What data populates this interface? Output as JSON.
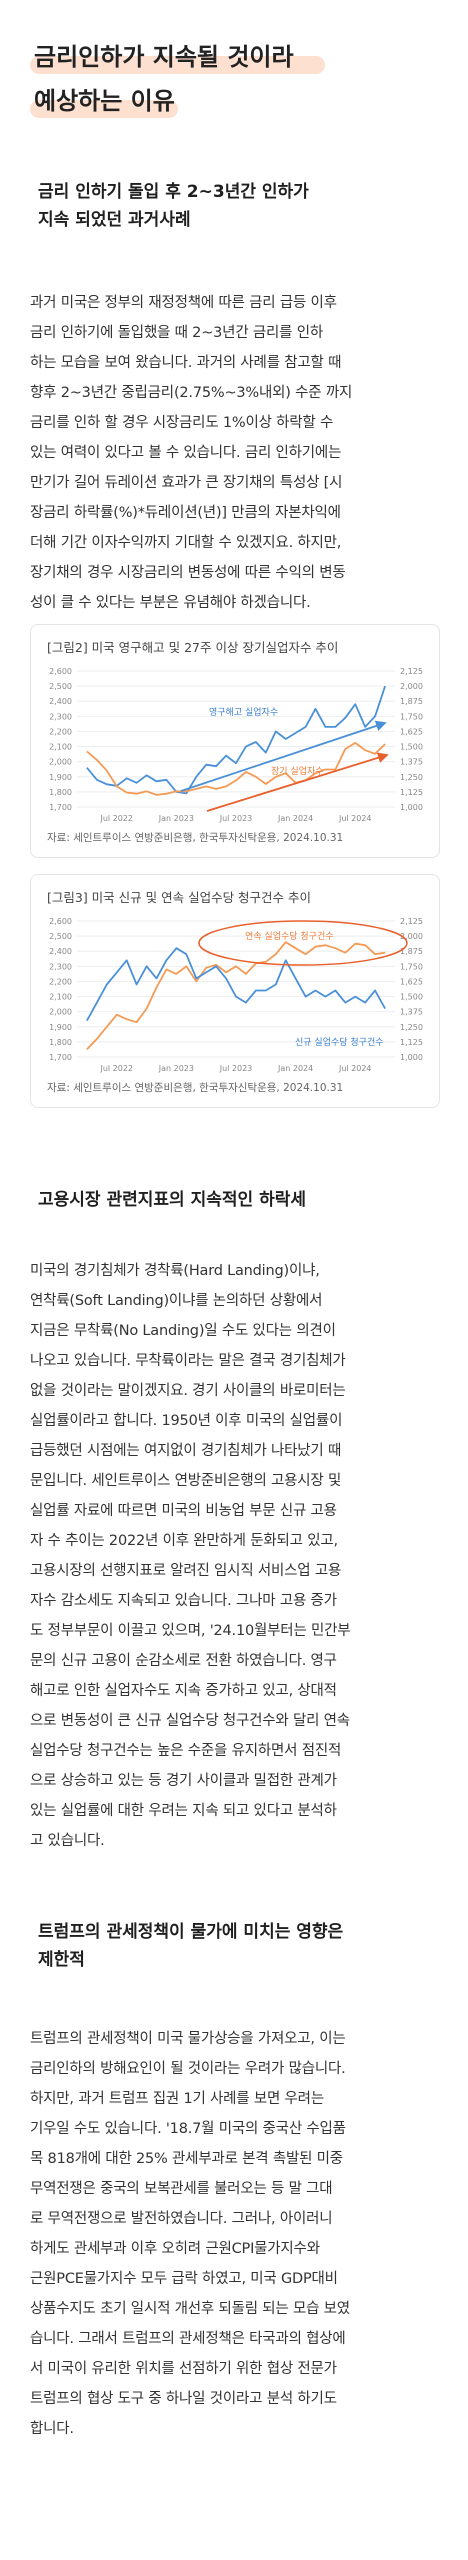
{
  "title": {
    "line1": "금리인하가 지속될 것이라",
    "line2": "예상하는 이유"
  },
  "section1": {
    "heading_line1": "금리 인하기 돌입 후 2~3년간 인하가",
    "heading_line2": "지속 되었던 과거사례",
    "lines": [
      "과거 미국은 정부의 재정정책에 따른 금리 급등 이후",
      "금리 인하기에 돌입했을 때 2~3년간 금리를 인하",
      "하는 모습을 보여 왔습니다. 과거의 사례를 참고할 때",
      "향후 2~3년간 중립금리(2.75%~3%내외) 수준 까지",
      "금리를 인하 할 경우 시장금리도 1%이상 하락할 수",
      "있는 여력이 있다고 볼 수 있습니다. 금리 인하기에는",
      "만기가 길어 듀레이션 효과가 큰 장기채의 특성상 [시",
      "장금리 하락률(%)*듀레이션(년)] 만큼의 자본차익에",
      "더해 기간 이자수익까지 기대할 수 있겠지요. 하지만,",
      "장기채의 경우 시장금리의 변동성에 따른 수익의 변동",
      "성이 클 수 있다는 부분은 유념해야 하겠습니다."
    ]
  },
  "chart_data": [
    {
      "type": "line",
      "title": "[그림2] 미국 영구해고 및 27주 이상 장기실업자수 추이",
      "x_ticks": [
        "Jul 2022",
        "Jan 2023",
        "Jul 2023",
        "Jan 2024",
        "Jul 2024"
      ],
      "y_left_ticks": [
        1700,
        1800,
        1900,
        2000,
        2100,
        2200,
        2300,
        2400,
        2500,
        2600
      ],
      "y_right_ticks": [
        1000,
        1125,
        1250,
        1375,
        1500,
        1625,
        1750,
        1875,
        2000,
        2125
      ],
      "ylim_left": [
        1700,
        2600
      ],
      "ylim_right": [
        1000,
        2125
      ],
      "series": [
        {
          "name": "영구해고 실업자수",
          "axis": "left",
          "color": "#4a90d9",
          "x": [
            "2022-04",
            "2022-05",
            "2022-06",
            "2022-07",
            "2022-08",
            "2022-09",
            "2022-10",
            "2022-11",
            "2022-12",
            "2023-01",
            "2023-02",
            "2023-03",
            "2023-04",
            "2023-05",
            "2023-06",
            "2023-07",
            "2023-08",
            "2023-09",
            "2023-10",
            "2023-11",
            "2023-12",
            "2024-01",
            "2024-02",
            "2024-03",
            "2024-04",
            "2024-05",
            "2024-06",
            "2024-07",
            "2024-08",
            "2024-09",
            "2024-10"
          ],
          "values": [
            1960,
            1880,
            1850,
            1840,
            1890,
            1860,
            1910,
            1870,
            1880,
            1800,
            1790,
            1900,
            1980,
            1970,
            2040,
            1990,
            2100,
            2130,
            2060,
            2200,
            2150,
            2190,
            2230,
            2350,
            2230,
            2230,
            2290,
            2380,
            2230,
            2300,
            2500
          ]
        },
        {
          "name": "장기 실업자수",
          "axis": "right",
          "color": "#f39a55",
          "x": [
            "2022-04",
            "2022-05",
            "2022-06",
            "2022-07",
            "2022-08",
            "2022-09",
            "2022-10",
            "2022-11",
            "2022-12",
            "2023-01",
            "2023-02",
            "2023-03",
            "2023-04",
            "2023-05",
            "2023-06",
            "2023-07",
            "2023-08",
            "2023-09",
            "2023-10",
            "2023-11",
            "2023-12",
            "2024-01",
            "2024-02",
            "2024-03",
            "2024-04",
            "2024-05",
            "2024-06",
            "2024-07",
            "2024-08",
            "2024-09",
            "2024-10"
          ],
          "values": [
            1460,
            1390,
            1300,
            1170,
            1120,
            1110,
            1130,
            1100,
            1110,
            1130,
            1130,
            1150,
            1170,
            1150,
            1170,
            1220,
            1290,
            1250,
            1190,
            1250,
            1280,
            1200,
            1220,
            1280,
            1310,
            1310,
            1480,
            1530,
            1470,
            1440,
            1520
          ]
        }
      ],
      "trend_arrows": true,
      "source": "자료: 세인트루이스 연방준비은행, 한국투자신탁운용, 2024.10.31"
    },
    {
      "type": "line",
      "title": "[그림3] 미국 신규 및 연속 실업수당 청구건수 추이",
      "x_ticks": [
        "Jul 2022",
        "Jan 2023",
        "Jul 2023",
        "Jan 2024",
        "Jul 2024"
      ],
      "y_left_ticks": [
        1700,
        1800,
        1900,
        2000,
        2100,
        2200,
        2300,
        2400,
        2500,
        2600
      ],
      "y_right_ticks": [
        1000,
        1125,
        1250,
        1375,
        1500,
        1625,
        1750,
        1875,
        2000,
        2125
      ],
      "ylim_left": [
        1700,
        2600
      ],
      "ylim_right": [
        1000,
        2125
      ],
      "series": [
        {
          "name": "연속 실업수당 청구건수",
          "axis": "left",
          "color": "#f39a55",
          "x": [
            "2022-04",
            "2022-05",
            "2022-06",
            "2022-07",
            "2022-08",
            "2022-09",
            "2022-10",
            "2022-11",
            "2022-12",
            "2023-01",
            "2023-02",
            "2023-03",
            "2023-04",
            "2023-05",
            "2023-06",
            "2023-07",
            "2023-08",
            "2023-09",
            "2023-10",
            "2023-11",
            "2023-12",
            "2024-01",
            "2024-02",
            "2024-03",
            "2024-04",
            "2024-05",
            "2024-06",
            "2024-07",
            "2024-08",
            "2024-09",
            "2024-10"
          ],
          "values": [
            1750,
            1820,
            1900,
            1980,
            1950,
            1930,
            2020,
            2160,
            2280,
            2250,
            2300,
            2200,
            2290,
            2310,
            2260,
            2300,
            2250,
            2320,
            2330,
            2380,
            2460,
            2420,
            2380,
            2430,
            2440,
            2420,
            2390,
            2450,
            2440,
            2380,
            2390
          ]
        },
        {
          "name": "신규 실업수당 청구건수",
          "axis": "right",
          "color": "#4a90d9",
          "x": [
            "2022-04",
            "2022-05",
            "2022-06",
            "2022-07",
            "2022-08",
            "2022-09",
            "2022-10",
            "2022-11",
            "2022-12",
            "2023-01",
            "2023-02",
            "2023-03",
            "2023-04",
            "2023-05",
            "2023-06",
            "2023-07",
            "2023-08",
            "2023-09",
            "2023-10",
            "2023-11",
            "2023-12",
            "2024-01",
            "2024-02",
            "2024-03",
            "2024-04",
            "2024-05",
            "2024-06",
            "2024-07",
            "2024-08",
            "2024-09",
            "2024-10"
          ],
          "values": [
            1300,
            1450,
            1600,
            1700,
            1800,
            1600,
            1750,
            1650,
            1800,
            1900,
            1850,
            1650,
            1700,
            1750,
            1650,
            1500,
            1450,
            1550,
            1550,
            1600,
            1800,
            1650,
            1500,
            1550,
            1500,
            1550,
            1450,
            1500,
            1450,
            1550,
            1400
          ]
        }
      ],
      "highlight_oval": true,
      "source": "자료: 세인트루이스 연방준비은행, 한국투자신탁운용, 2024.10.31"
    }
  ],
  "section2": {
    "heading": "고용시장 관련지표의 지속적인 하락세",
    "lines": [
      "미국의 경기침체가 경착륙(Hard Landing)이냐,",
      "연착륙(Soft Landing)이냐를 논의하던 상황에서",
      "지금은 무착륙(No Landing)일 수도 있다는 의견이",
      "나오고 있습니다. 무착륙이라는 말은 결국 경기침체가",
      "없을 것이라는 말이겠지요. 경기 사이클의 바로미터는",
      "실업률이라고 합니다. 1950년 이후 미국의 실업률이",
      "급등했던 시점에는 여지없이 경기침체가 나타났기 때",
      "문입니다. 세인트루이스 연방준비은행의 고용시장 및",
      "실업률 자료에 따르면 미국의 비농업 부문 신규 고용",
      "자 수 추이는 2022년 이후 완만하게 둔화되고 있고,",
      "고용시장의 선행지표로 알려진 임시직 서비스업 고용",
      "자수 감소세도 지속되고 있습니다. 그나마 고용 증가",
      "도 정부부문이 이끌고 있으며, '24.10월부터는 민간부",
      "문의 신규 고용이 순감소세로 전환 하였습니다. 영구",
      "해고로 인한 실업자수도 지속 증가하고 있고, 상대적",
      "으로 변동성이 큰 신규 실업수당 청구건수와 달리 연속",
      "실업수당 청구건수는 높은 수준을 유지하면서 점진적",
      "으로 상승하고 있는 등 경기 사이클과 밀접한 관계가",
      "있는 실업률에 대한 우려는 지속 되고 있다고 분석하",
      "고 있습니다."
    ]
  },
  "section3": {
    "heading_line1": "트럼프의 관세정책이 물가에 미치는 영향은",
    "heading_line2": "제한적",
    "lines": [
      "트럼프의 관세정책이 미국 물가상승을 가져오고, 이는",
      "금리인하의 방해요인이 될 것이라는 우려가 많습니다.",
      "하지만, 과거 트럼프 집권 1기 사례를 보면 우려는",
      "기우일 수도 있습니다. '18.7월 미국의 중국산 수입품",
      "목 818개에 대한 25% 관세부과로 본격 촉발된 미중",
      "무역전쟁은 중국의 보복관세를 불러오는 등 말 그대",
      "로 무역전쟁으로 발전하였습니다. 그러나, 아이러니",
      "하게도 관세부과 이후 오히려 근원CPI물가지수와",
      "근원PCE물가지수 모두 급락 하였고, 미국 GDP대비",
      "상품수지도 초기 일시적 개선후 되돌림 되는 모습 보였",
      "습니다. 그래서 트럼프의 관세정책은 타국과의 협상에",
      "서 미국이 유리한 위치를 선점하기 위한 협상 전문가",
      "트럼프의 협상 도구 중 하나일 것이라고 분석 하기도",
      "합니다."
    ]
  }
}
